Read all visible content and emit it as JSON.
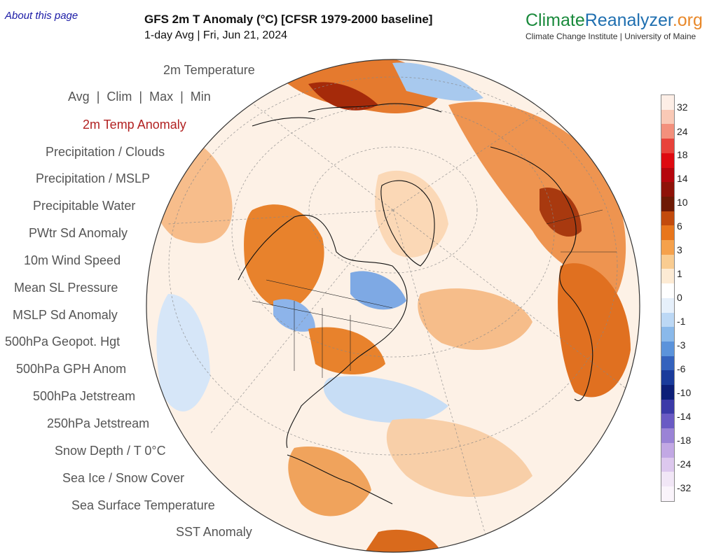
{
  "about_link": "About this page",
  "title": "GFS 2m T Anomaly (°C) [CFSR 1979-2000 baseline]",
  "subtitle": "1-day Avg | Fri, Jun 21, 2024",
  "brand": {
    "name_part1": "Climate",
    "name_part2": "Reanalyzer",
    "name_part3": ".org",
    "tagline": "Climate Change Institute | University of Maine",
    "colors": {
      "climate": "#1a8a3c",
      "reanalyzer": "#1f6fb0",
      "org": "#e8882a"
    }
  },
  "menu": {
    "temperature": "2m Temperature",
    "sub_items": [
      "Avg",
      "Clim",
      "Max",
      "Min"
    ],
    "active": "2m Temp Anomaly",
    "items": [
      "Precipitation / Clouds",
      "Precipitation / MSLP",
      "Precipitable Water",
      "PWtr Sd Anomaly",
      "10m Wind Speed",
      "Mean SL Pressure",
      "MSLP Sd Anomaly",
      "500hPa Geopot. Hgt",
      "500hPa GPH Anom",
      "500hPa Jetstream",
      "250hPa Jetstream",
      "Snow Depth / T 0°C",
      "Sea Ice / Snow Cover",
      "Sea Surface Temperature",
      "SST Anomaly"
    ],
    "active_color": "#b22222"
  },
  "legend": {
    "labels": [
      "32",
      "24",
      "18",
      "14",
      "10",
      "6",
      "3",
      "1",
      "0",
      "-1",
      "-3",
      "-6",
      "-10",
      "-14",
      "-18",
      "-24",
      "-32"
    ],
    "colors": [
      "#fdeee6",
      "#f9c9b6",
      "#f3907c",
      "#e8423a",
      "#de0a10",
      "#b5060d",
      "#8f1208",
      "#6e1a05",
      "#c24b0d",
      "#e8761c",
      "#f5a14c",
      "#f9cc91",
      "#fdebd4",
      "#ffffff",
      "#e6f0fb",
      "#bcd8f5",
      "#8ab9ea",
      "#5b93db",
      "#3462bd",
      "#1a3b9b",
      "#0d1f78",
      "#3b3aa8",
      "#6a5ac4",
      "#9a83d6",
      "#c2a8e4",
      "#ddc8ee",
      "#f1e6f6",
      "#faf4fb"
    ]
  },
  "map": {
    "land_color": "#fbe3cc",
    "ocean_color": "#fdf3ea",
    "warm_color": "#e8761c",
    "hot_color": "#8f1a08",
    "cool_color": "#8ab9ea",
    "cold_color": "#3462bd"
  }
}
